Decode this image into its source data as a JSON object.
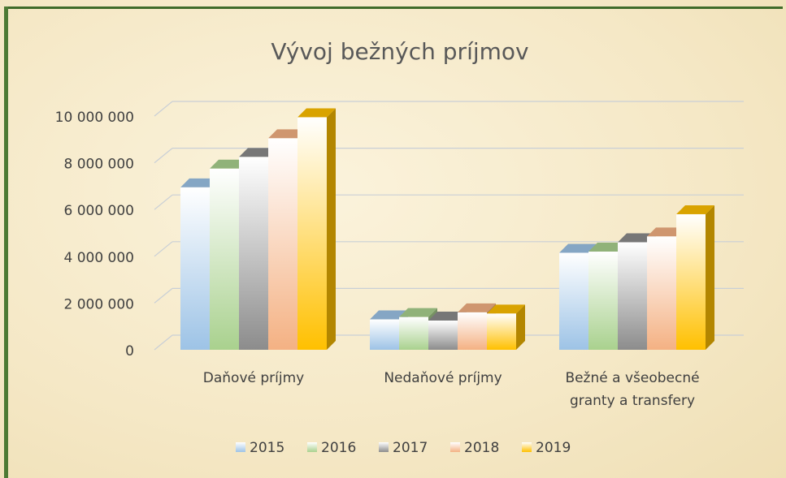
{
  "chart_data": {
    "type": "bar3d",
    "title": "Vývoj bežných príjmov",
    "categories": [
      "Daňové príjmy",
      "Nedaňové príjmy",
      "Bežné a všeobecné granty a transfery"
    ],
    "series": [
      {
        "name": "2015",
        "color": "#9dc3e6",
        "values": [
          6950000,
          1300000,
          4150000
        ]
      },
      {
        "name": "2016",
        "color": "#a9d18e",
        "values": [
          7750000,
          1400000,
          4200000
        ]
      },
      {
        "name": "2017",
        "color": "#8c8c8c",
        "values": [
          8250000,
          1250000,
          4600000
        ]
      },
      {
        "name": "2018",
        "color": "#f4b183",
        "values": [
          9050000,
          1600000,
          4850000
        ]
      },
      {
        "name": "2019",
        "color": "#ffc000",
        "values": [
          9950000,
          1550000,
          5800000
        ]
      }
    ],
    "ylim": [
      0,
      10000000
    ],
    "yticks": [
      0,
      {
        "value": 2000000,
        "label": "2 000 000"
      },
      {
        "value": 4000000,
        "label": "4 000 000"
      },
      {
        "value": 6000000,
        "label": "6 000 000"
      },
      {
        "value": 8000000,
        "label": "8 000 000"
      },
      {
        "value": 10000000,
        "label": "10 000 000"
      }
    ],
    "grid": true,
    "legend": "bottom"
  }
}
